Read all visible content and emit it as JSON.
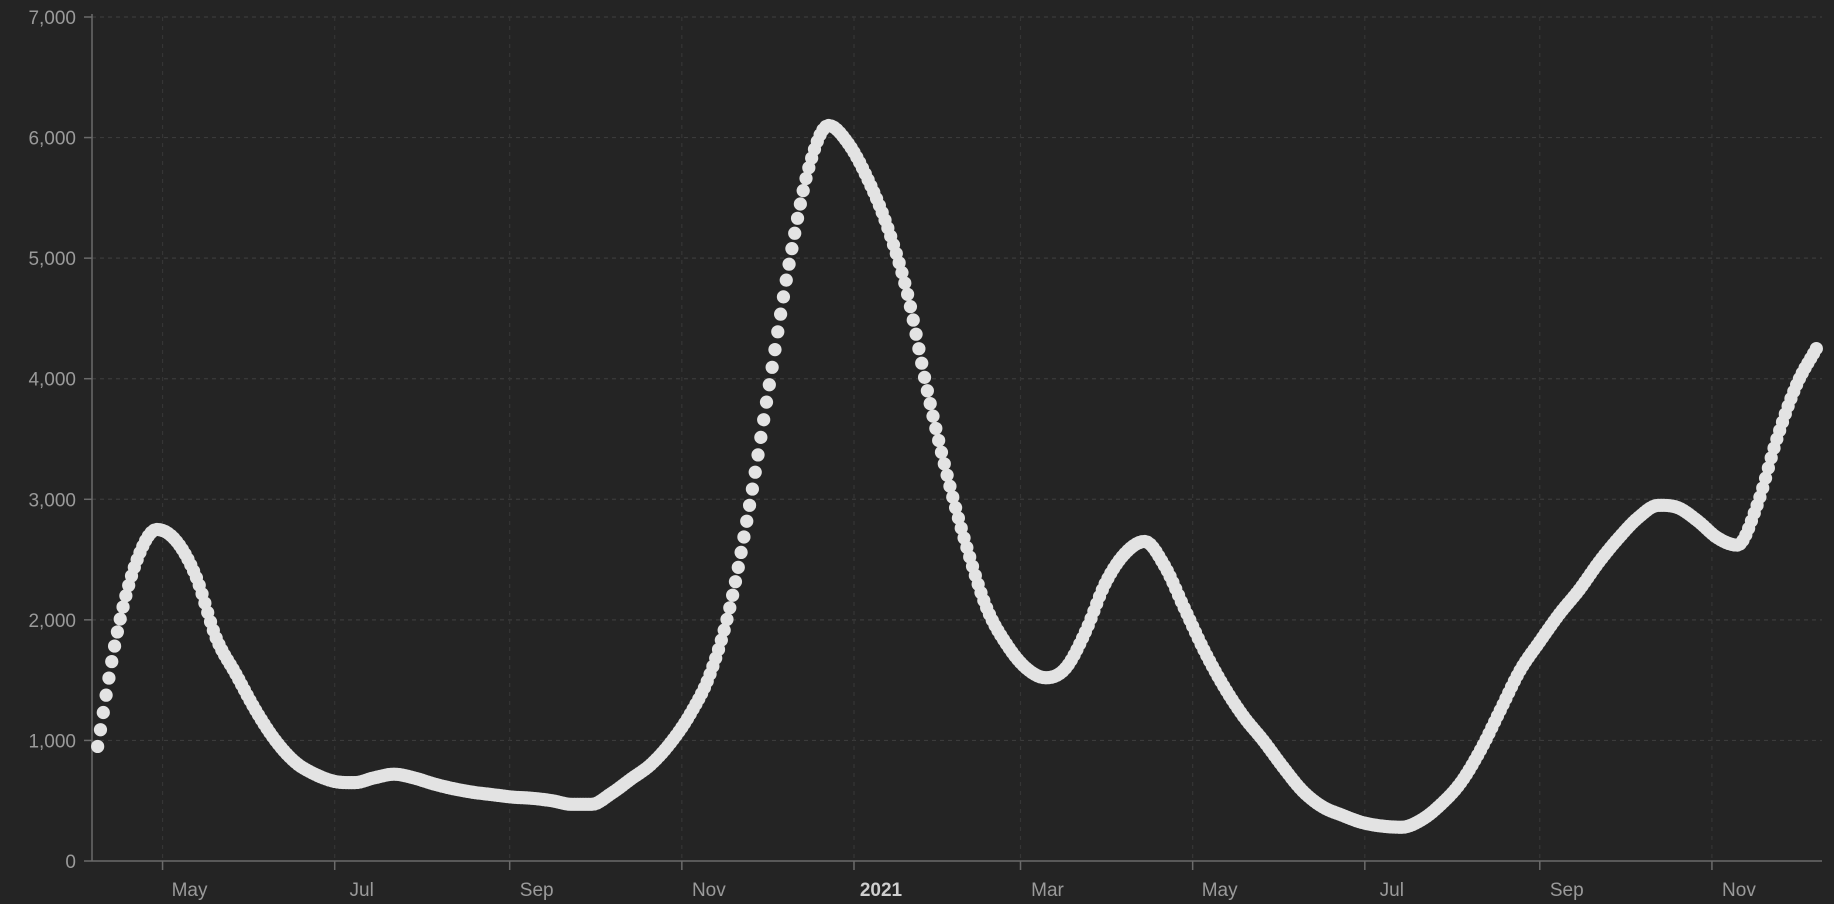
{
  "colors": {
    "background": "#242424",
    "points": "#e3e3e3",
    "text": "#9a9a9a",
    "grid": "#3b3b3b",
    "axis": "#6b6b6b"
  },
  "chart_data": {
    "type": "scatter",
    "title": "",
    "xlabel": "",
    "ylabel": "",
    "grid": true,
    "x_start": "2020-04-06",
    "x_end": "2021-12-10",
    "ylim": [
      0,
      7000
    ],
    "y_ticks": [
      0,
      1000,
      2000,
      3000,
      4000,
      5000,
      6000,
      7000
    ],
    "y_tick_labels": [
      "0",
      "1,000",
      "2,000",
      "3,000",
      "4,000",
      "5,000",
      "6,000",
      "7,000"
    ],
    "x_ticks": [
      {
        "date": "2020-05-01",
        "label": "May"
      },
      {
        "date": "2020-07-01",
        "label": "Jul"
      },
      {
        "date": "2020-09-01",
        "label": "Sep"
      },
      {
        "date": "2020-11-01",
        "label": "Nov"
      },
      {
        "date": "2021-01-01",
        "label": "2021"
      },
      {
        "date": "2021-03-01",
        "label": "Mar"
      },
      {
        "date": "2021-05-01",
        "label": "May"
      },
      {
        "date": "2021-07-01",
        "label": "Jul"
      },
      {
        "date": "2021-09-01",
        "label": "Sep"
      },
      {
        "date": "2021-11-01",
        "label": "Nov"
      }
    ],
    "series": [
      {
        "points": [
          [
            "2020-04-08",
            950
          ],
          [
            "2020-04-15",
            1900
          ],
          [
            "2020-04-22",
            2500
          ],
          [
            "2020-04-29",
            2750
          ],
          [
            "2020-05-06",
            2650
          ],
          [
            "2020-05-13",
            2350
          ],
          [
            "2020-05-20",
            1850
          ],
          [
            "2020-05-27",
            1550
          ],
          [
            "2020-06-03",
            1250
          ],
          [
            "2020-06-10",
            1000
          ],
          [
            "2020-06-17",
            820
          ],
          [
            "2020-06-24",
            720
          ],
          [
            "2020-07-01",
            660
          ],
          [
            "2020-07-08",
            650
          ],
          [
            "2020-07-15",
            690
          ],
          [
            "2020-07-22",
            720
          ],
          [
            "2020-07-29",
            690
          ],
          [
            "2020-08-05",
            640
          ],
          [
            "2020-08-12",
            600
          ],
          [
            "2020-08-19",
            570
          ],
          [
            "2020-08-26",
            550
          ],
          [
            "2020-09-02",
            530
          ],
          [
            "2020-09-09",
            520
          ],
          [
            "2020-09-16",
            500
          ],
          [
            "2020-09-23",
            470
          ],
          [
            "2020-09-30",
            470
          ],
          [
            "2020-10-07",
            560
          ],
          [
            "2020-10-14",
            680
          ],
          [
            "2020-10-21",
            800
          ],
          [
            "2020-10-28",
            980
          ],
          [
            "2020-11-04",
            1220
          ],
          [
            "2020-11-11",
            1550
          ],
          [
            "2020-11-18",
            2100
          ],
          [
            "2020-11-25",
            2950
          ],
          [
            "2020-12-02",
            3950
          ],
          [
            "2020-12-09",
            4950
          ],
          [
            "2020-12-16",
            5750
          ],
          [
            "2020-12-23",
            6100
          ],
          [
            "2020-12-30",
            5950
          ],
          [
            "2021-01-06",
            5650
          ],
          [
            "2021-01-13",
            5250
          ],
          [
            "2021-01-20",
            4700
          ],
          [
            "2021-01-27",
            3900
          ],
          [
            "2021-02-03",
            3200
          ],
          [
            "2021-02-10",
            2600
          ],
          [
            "2021-02-17",
            2100
          ],
          [
            "2021-02-24",
            1800
          ],
          [
            "2021-03-03",
            1600
          ],
          [
            "2021-03-10",
            1520
          ],
          [
            "2021-03-17",
            1600
          ],
          [
            "2021-03-24",
            1900
          ],
          [
            "2021-03-31",
            2300
          ],
          [
            "2021-04-07",
            2550
          ],
          [
            "2021-04-14",
            2650
          ],
          [
            "2021-04-21",
            2450
          ],
          [
            "2021-04-28",
            2100
          ],
          [
            "2021-05-05",
            1750
          ],
          [
            "2021-05-12",
            1450
          ],
          [
            "2021-05-19",
            1200
          ],
          [
            "2021-05-26",
            1000
          ],
          [
            "2021-06-02",
            780
          ],
          [
            "2021-06-09",
            580
          ],
          [
            "2021-06-16",
            450
          ],
          [
            "2021-06-23",
            380
          ],
          [
            "2021-06-30",
            320
          ],
          [
            "2021-07-07",
            290
          ],
          [
            "2021-07-14",
            280
          ],
          [
            "2021-07-21",
            340
          ],
          [
            "2021-07-28",
            470
          ],
          [
            "2021-08-04",
            650
          ],
          [
            "2021-08-11",
            920
          ],
          [
            "2021-08-18",
            1250
          ],
          [
            "2021-08-25",
            1580
          ],
          [
            "2021-09-01",
            1820
          ],
          [
            "2021-09-08",
            2050
          ],
          [
            "2021-09-15",
            2250
          ],
          [
            "2021-09-22",
            2480
          ],
          [
            "2021-09-29",
            2680
          ],
          [
            "2021-10-06",
            2850
          ],
          [
            "2021-10-13",
            2950
          ],
          [
            "2021-10-20",
            2930
          ],
          [
            "2021-10-27",
            2820
          ],
          [
            "2021-11-03",
            2680
          ],
          [
            "2021-11-10",
            2620
          ],
          [
            "2021-11-17",
            2950
          ],
          [
            "2021-11-24",
            3500
          ],
          [
            "2021-12-01",
            3950
          ],
          [
            "2021-12-08",
            4250
          ]
        ]
      }
    ]
  }
}
